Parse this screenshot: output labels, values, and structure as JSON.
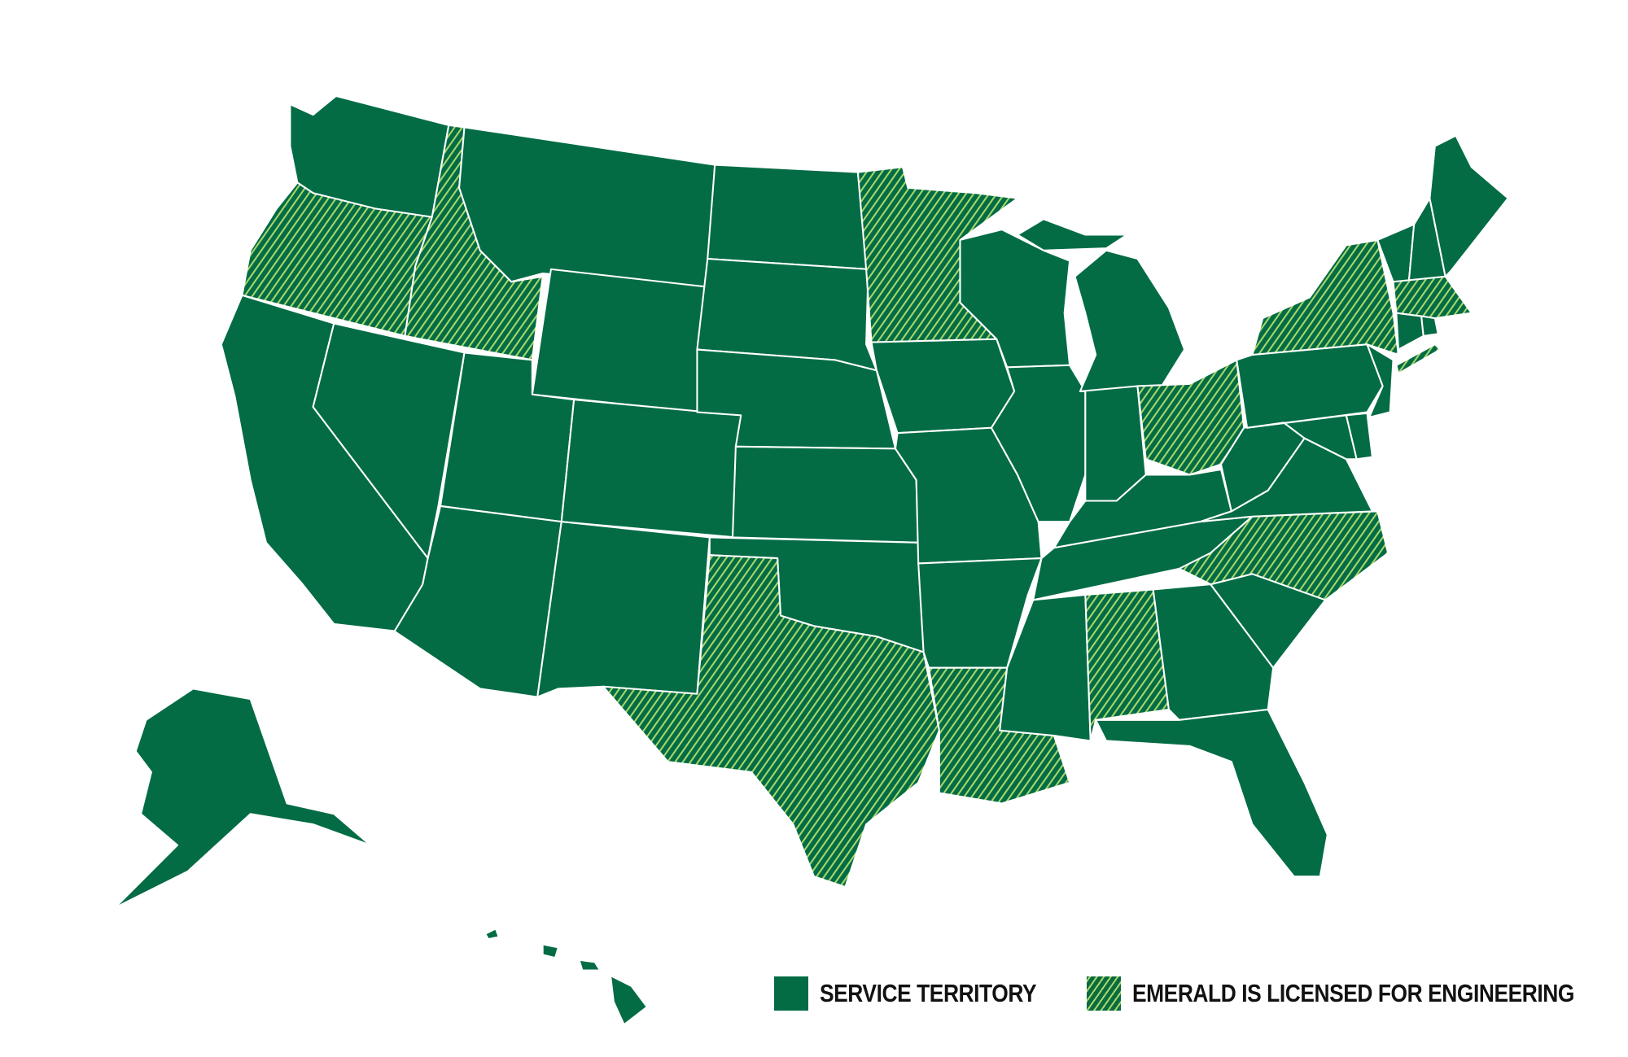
{
  "colors": {
    "service": "#036c45",
    "hatch_stripe": "#a9d86a",
    "border": "#ffffff"
  },
  "legend": {
    "service_label": "SERVICE TERRITORY",
    "licensed_label": "EMERALD IS LICENSED FOR ENGINEERING"
  },
  "states": [
    {
      "code": "WA",
      "status": "service"
    },
    {
      "code": "OR",
      "status": "licensed"
    },
    {
      "code": "CA",
      "status": "service"
    },
    {
      "code": "NV",
      "status": "service"
    },
    {
      "code": "ID",
      "status": "licensed"
    },
    {
      "code": "MT",
      "status": "service"
    },
    {
      "code": "WY",
      "status": "service"
    },
    {
      "code": "UT",
      "status": "service"
    },
    {
      "code": "AZ",
      "status": "service"
    },
    {
      "code": "CO",
      "status": "service"
    },
    {
      "code": "NM",
      "status": "service"
    },
    {
      "code": "ND",
      "status": "service"
    },
    {
      "code": "SD",
      "status": "service"
    },
    {
      "code": "NE",
      "status": "service"
    },
    {
      "code": "KS",
      "status": "service"
    },
    {
      "code": "OK",
      "status": "service"
    },
    {
      "code": "TX",
      "status": "licensed"
    },
    {
      "code": "MN",
      "status": "licensed"
    },
    {
      "code": "IA",
      "status": "service"
    },
    {
      "code": "MO",
      "status": "service"
    },
    {
      "code": "AR",
      "status": "service"
    },
    {
      "code": "LA",
      "status": "licensed"
    },
    {
      "code": "WI",
      "status": "service"
    },
    {
      "code": "IL",
      "status": "service"
    },
    {
      "code": "MI",
      "status": "service"
    },
    {
      "code": "IN",
      "status": "service"
    },
    {
      "code": "OH",
      "status": "licensed"
    },
    {
      "code": "KY",
      "status": "service"
    },
    {
      "code": "TN",
      "status": "service"
    },
    {
      "code": "MS",
      "status": "service"
    },
    {
      "code": "AL",
      "status": "licensed"
    },
    {
      "code": "GA",
      "status": "service"
    },
    {
      "code": "FL",
      "status": "service"
    },
    {
      "code": "SC",
      "status": "service"
    },
    {
      "code": "NC",
      "status": "licensed"
    },
    {
      "code": "VA",
      "status": "service"
    },
    {
      "code": "WV",
      "status": "service"
    },
    {
      "code": "PA",
      "status": "service"
    },
    {
      "code": "NY",
      "status": "licensed"
    },
    {
      "code": "NJ",
      "status": "service"
    },
    {
      "code": "MD",
      "status": "service"
    },
    {
      "code": "DE",
      "status": "service"
    },
    {
      "code": "VT",
      "status": "service"
    },
    {
      "code": "NH",
      "status": "service"
    },
    {
      "code": "ME",
      "status": "service"
    },
    {
      "code": "MA",
      "status": "licensed"
    },
    {
      "code": "CT",
      "status": "service"
    },
    {
      "code": "RI",
      "status": "service"
    },
    {
      "code": "AK",
      "status": "service"
    },
    {
      "code": "HI",
      "status": "service"
    }
  ]
}
